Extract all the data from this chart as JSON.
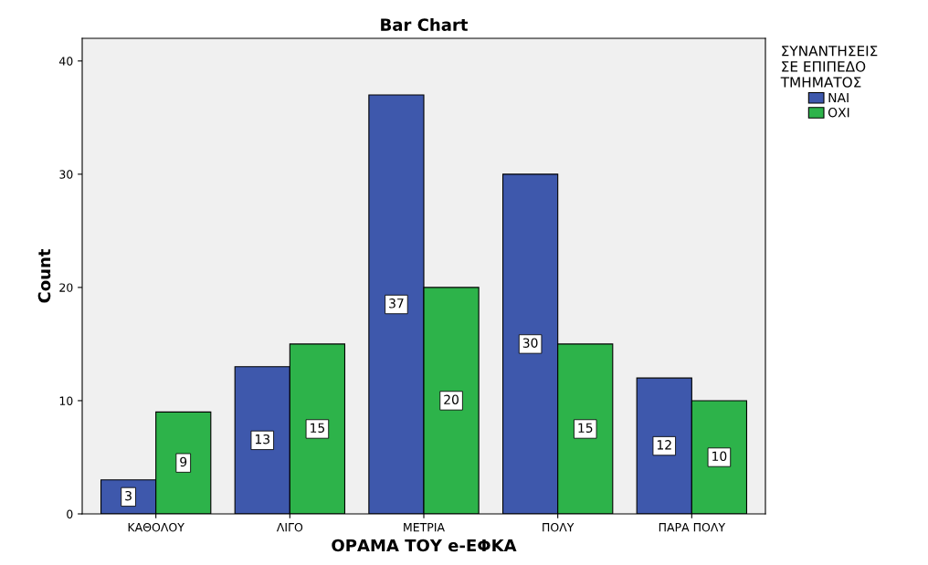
{
  "chart_data": {
    "type": "bar",
    "title": "Bar Chart",
    "xlabel": "ΟΡΑΜΑ ΤΟΥ e-ΕΦΚΑ",
    "ylabel": "Count",
    "legend_title": "ΣΥΝΑΝΤΗΣΕΙΣ\nΣΕ ΕΠΙΠΕΔΟ\nΤΜΗΜΑΤΟΣ",
    "categories": [
      "ΚΑΘΟΛΟΥ",
      "ΛΙΓΟ",
      "ΜΕΤΡΙΑ",
      "ΠΟΛΥ",
      "ΠΑΡΑ ΠΟΛΥ"
    ],
    "series": [
      {
        "name": "ΝΑΙ",
        "color": "#3e58ac",
        "values": [
          3,
          13,
          37,
          30,
          12
        ]
      },
      {
        "name": "ΟΧΙ",
        "color": "#2db34a",
        "values": [
          9,
          15,
          20,
          15,
          10
        ]
      }
    ],
    "ylim": [
      0,
      42
    ],
    "yticks": [
      0,
      10,
      20,
      30,
      40
    ],
    "grid": false,
    "legend": "top right",
    "data_labels": true
  }
}
